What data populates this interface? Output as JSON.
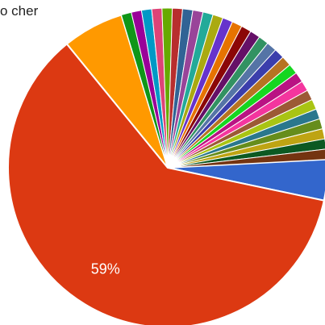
{
  "chart_data": {
    "type": "pie",
    "title": "o cher",
    "start_label": "",
    "slices": [
      {
        "value": 4.0,
        "color": "#3366cc",
        "label": ""
      },
      {
        "value": 59.0,
        "color": "#dc3912",
        "label": "59%"
      },
      {
        "value": 6.0,
        "color": "#ff9900",
        "label": ""
      },
      {
        "value": 1.0,
        "color": "#109618",
        "label": ""
      },
      {
        "value": 1.0,
        "color": "#990099",
        "label": ""
      },
      {
        "value": 1.0,
        "color": "#0099c6",
        "label": ""
      },
      {
        "value": 1.0,
        "color": "#dd4477",
        "label": ""
      },
      {
        "value": 1.0,
        "color": "#66aa00",
        "label": ""
      },
      {
        "value": 1.0,
        "color": "#b82e2e",
        "label": ""
      },
      {
        "value": 1.0,
        "color": "#316395",
        "label": ""
      },
      {
        "value": 1.0,
        "color": "#994499",
        "label": ""
      },
      {
        "value": 1.0,
        "color": "#22aa99",
        "label": ""
      },
      {
        "value": 1.0,
        "color": "#aaaa11",
        "label": ""
      },
      {
        "value": 1.0,
        "color": "#6633cc",
        "label": ""
      },
      {
        "value": 1.0,
        "color": "#e67300",
        "label": ""
      },
      {
        "value": 1.0,
        "color": "#8b0707",
        "label": ""
      },
      {
        "value": 1.0,
        "color": "#651067",
        "label": ""
      },
      {
        "value": 1.0,
        "color": "#329262",
        "label": ""
      },
      {
        "value": 1.0,
        "color": "#5574a6",
        "label": ""
      },
      {
        "value": 1.0,
        "color": "#3b3eac",
        "label": ""
      },
      {
        "value": 1.0,
        "color": "#b77322",
        "label": ""
      },
      {
        "value": 1.0,
        "color": "#16d620",
        "label": ""
      },
      {
        "value": 1.0,
        "color": "#b91383",
        "label": ""
      },
      {
        "value": 1.0,
        "color": "#f4359e",
        "label": ""
      },
      {
        "value": 1.0,
        "color": "#9c5935",
        "label": ""
      },
      {
        "value": 1.0,
        "color": "#a9c413",
        "label": ""
      },
      {
        "value": 1.0,
        "color": "#2a778d",
        "label": ""
      },
      {
        "value": 1.0,
        "color": "#668d1c",
        "label": ""
      },
      {
        "value": 1.0,
        "color": "#bea413",
        "label": ""
      },
      {
        "value": 1.0,
        "color": "#0c5922",
        "label": ""
      },
      {
        "value": 1.0,
        "color": "#743411",
        "label": ""
      }
    ],
    "legend": "none"
  }
}
